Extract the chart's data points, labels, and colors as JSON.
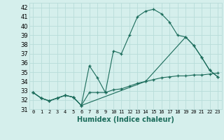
{
  "title": "",
  "xlabel": "Humidex (Indice chaleur)",
  "ylabel": "",
  "bg_color": "#d5efec",
  "grid_color": "#b8ddd9",
  "line_color": "#1a6b5a",
  "xlim": [
    -0.5,
    23.5
  ],
  "ylim": [
    31,
    42.5
  ],
  "yticks": [
    31,
    32,
    33,
    34,
    35,
    36,
    37,
    38,
    39,
    40,
    41,
    42
  ],
  "xticks": [
    0,
    1,
    2,
    3,
    4,
    5,
    6,
    7,
    8,
    9,
    10,
    11,
    12,
    13,
    14,
    15,
    16,
    17,
    18,
    19,
    20,
    21,
    22,
    23
  ],
  "series": [
    {
      "x": [
        0,
        1,
        2,
        3,
        4,
        5,
        6,
        7,
        8,
        9,
        10,
        11,
        12,
        13,
        14,
        15,
        16,
        17,
        18,
        19,
        20,
        21,
        22,
        23
      ],
      "y": [
        32.8,
        32.2,
        31.9,
        32.2,
        32.5,
        32.3,
        31.4,
        35.7,
        34.4,
        32.8,
        37.3,
        37.0,
        39.0,
        41.0,
        41.6,
        41.8,
        41.3,
        40.4,
        39.0,
        38.8,
        37.9,
        36.6,
        35.2,
        34.5
      ]
    },
    {
      "x": [
        0,
        1,
        2,
        3,
        4,
        5,
        6,
        7,
        8,
        9,
        10,
        11,
        12,
        13,
        14,
        15,
        16,
        17,
        18,
        19,
        20,
        21,
        22,
        23
      ],
      "y": [
        32.8,
        32.2,
        31.9,
        32.2,
        32.5,
        32.3,
        31.4,
        32.8,
        32.8,
        32.8,
        33.1,
        33.2,
        33.5,
        33.8,
        34.0,
        34.2,
        34.4,
        34.5,
        34.6,
        34.6,
        34.7,
        34.7,
        34.8,
        34.9
      ]
    },
    {
      "x": [
        0,
        1,
        2,
        3,
        4,
        5,
        6,
        14,
        19,
        20,
        21,
        22,
        23
      ],
      "y": [
        32.8,
        32.2,
        31.9,
        32.2,
        32.5,
        32.3,
        31.4,
        34.0,
        38.8,
        37.9,
        36.6,
        35.2,
        34.5
      ]
    }
  ],
  "xlabel_fontsize": 7,
  "xtick_fontsize": 5,
  "ytick_fontsize": 6
}
